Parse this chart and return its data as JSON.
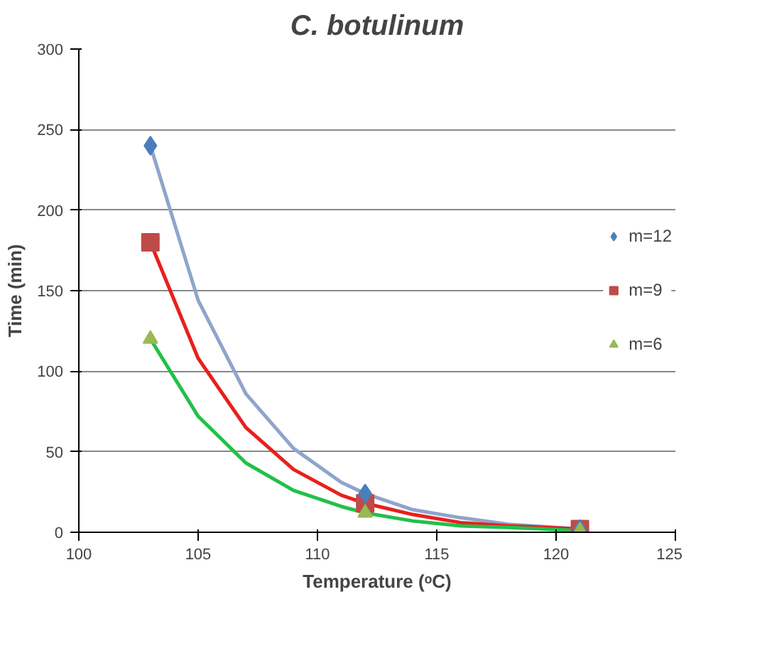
{
  "chart_data": {
    "type": "scatter",
    "title": "C. botulinum",
    "xlabel": "Temperature (ᵒC)",
    "ylabel": "Time (min)",
    "xlim": [
      100,
      125
    ],
    "xticks": [
      100,
      105,
      110,
      115,
      120,
      125
    ],
    "ylim": [
      0,
      300
    ],
    "yticks": [
      0,
      50,
      100,
      150,
      200,
      250,
      300
    ],
    "grid": "y",
    "legend": "right",
    "series": [
      {
        "name": "m=12",
        "color": "#4a7ebb",
        "marker": "diamond",
        "x": [
          103,
          112,
          121
        ],
        "values": [
          240,
          24,
          2
        ]
      },
      {
        "name": "m=9",
        "color": "#be4b48",
        "marker": "square",
        "x": [
          103,
          112,
          121
        ],
        "values": [
          180,
          18,
          2
        ]
      },
      {
        "name": "m=6",
        "color": "#98b954",
        "marker": "triangle",
        "x": [
          103,
          112,
          121
        ],
        "values": [
          120,
          12,
          1
        ]
      },
      {
        "type": "line",
        "color": "#8ea5cb",
        "x": [
          103,
          105,
          107,
          109,
          111,
          112,
          114,
          116,
          118,
          121
        ],
        "values": [
          240,
          144,
          86,
          52,
          31,
          24,
          14,
          9,
          5,
          2
        ]
      },
      {
        "type": "line",
        "color": "#e8201c",
        "x": [
          103,
          105,
          107,
          109,
          111,
          112,
          114,
          116,
          118,
          121
        ],
        "values": [
          180,
          108,
          65,
          39,
          23,
          18,
          11,
          6,
          4,
          2
        ]
      },
      {
        "type": "line",
        "color": "#22c04a",
        "x": [
          103,
          105,
          107,
          109,
          111,
          112,
          114,
          116,
          118,
          121
        ],
        "values": [
          120,
          72,
          43,
          26,
          16,
          12,
          7,
          4,
          3,
          1
        ]
      }
    ]
  }
}
